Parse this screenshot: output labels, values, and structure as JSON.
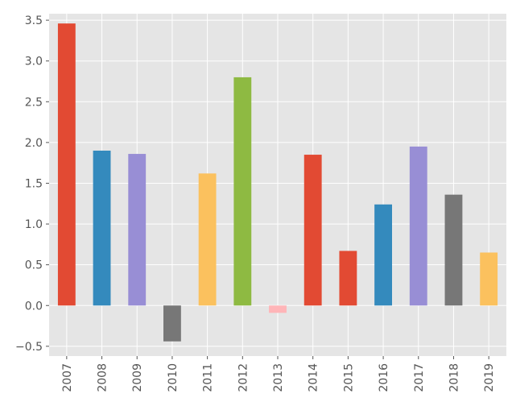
{
  "chart_data": {
    "type": "bar",
    "title": "",
    "xlabel": "",
    "ylabel": "",
    "categories": [
      "2007",
      "2008",
      "2009",
      "2010",
      "2011",
      "2012",
      "2013",
      "2014",
      "2015",
      "2016",
      "2017",
      "2018",
      "2019"
    ],
    "values": [
      3.46,
      1.9,
      1.86,
      -0.44,
      1.62,
      2.8,
      -0.09,
      1.85,
      0.67,
      1.24,
      1.95,
      1.36,
      0.65
    ],
    "colors": [
      "#E24A33",
      "#348ABD",
      "#988ED5",
      "#777777",
      "#FBC15E",
      "#8EBA42",
      "#FFB5B8",
      "#E24A33",
      "#E24A33",
      "#348ABD",
      "#988ED5",
      "#777777",
      "#FBC15E"
    ],
    "ylim": [
      -0.62,
      3.58
    ],
    "yticks": [
      -0.5,
      0.0,
      0.5,
      1.0,
      1.5,
      2.0,
      2.5,
      3.0,
      3.5
    ],
    "ytick_labels": [
      "−0.5",
      "0.0",
      "0.5",
      "1.0",
      "1.5",
      "2.0",
      "2.5",
      "3.0",
      "3.5"
    ],
    "grid": true,
    "background": "#E5E5E5",
    "grid_color": "#FFFFFF"
  }
}
